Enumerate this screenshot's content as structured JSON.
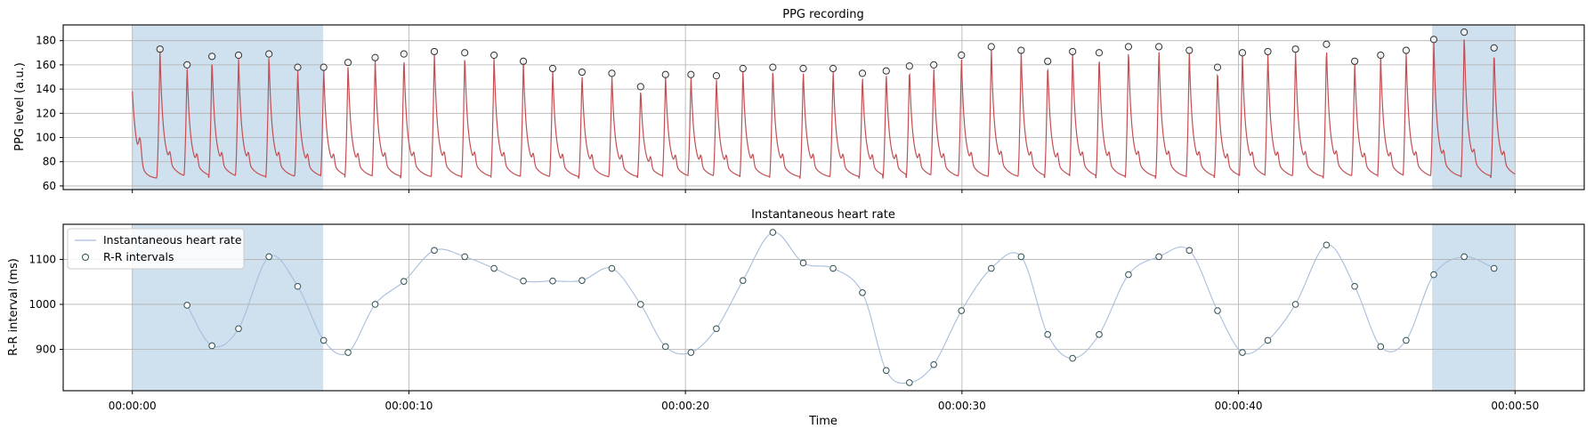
{
  "chart_data": [
    {
      "type": "line",
      "title": "PPG recording",
      "ylabel": "PPG level (a.u.)",
      "xlabel": "",
      "x_unit": "seconds",
      "xlim": [
        -2.5,
        52.5
      ],
      "ylim": [
        57,
        193
      ],
      "yticks": [
        60,
        80,
        100,
        120,
        140,
        160,
        180
      ],
      "grid": true,
      "series_color": "#c44e52",
      "shaded_regions": [
        [
          0,
          6.9
        ],
        [
          47,
          50
        ]
      ],
      "shade_color": "#cfe0ee",
      "series": [
        {
          "name": "PPG signal",
          "trough": 66,
          "peaks": [
            [
              1.0,
              173
            ],
            [
              1.98,
              160
            ],
            [
              2.88,
              167
            ],
            [
              3.84,
              168
            ],
            [
              4.94,
              169
            ],
            [
              5.98,
              158
            ],
            [
              6.92,
              158
            ],
            [
              7.8,
              162
            ],
            [
              8.78,
              166
            ],
            [
              9.82,
              169
            ],
            [
              10.92,
              171
            ],
            [
              12.02,
              170
            ],
            [
              13.08,
              168
            ],
            [
              14.14,
              163
            ],
            [
              15.2,
              157
            ],
            [
              16.26,
              154
            ],
            [
              17.34,
              153
            ],
            [
              18.38,
              142
            ],
            [
              19.28,
              152
            ],
            [
              20.2,
              152
            ],
            [
              21.12,
              151
            ],
            [
              22.08,
              157
            ],
            [
              23.16,
              158
            ],
            [
              24.26,
              157
            ],
            [
              25.34,
              157
            ],
            [
              26.4,
              153
            ],
            [
              27.26,
              155
            ],
            [
              28.1,
              159
            ],
            [
              28.98,
              160
            ],
            [
              29.98,
              168
            ],
            [
              31.06,
              175
            ],
            [
              32.14,
              172
            ],
            [
              33.1,
              163
            ],
            [
              34.0,
              171
            ],
            [
              34.96,
              170
            ],
            [
              36.02,
              175
            ],
            [
              37.12,
              175
            ],
            [
              38.22,
              172
            ],
            [
              39.24,
              158
            ],
            [
              40.14,
              170
            ],
            [
              41.06,
              171
            ],
            [
              42.06,
              173
            ],
            [
              43.18,
              177
            ],
            [
              44.2,
              163
            ],
            [
              45.14,
              168
            ],
            [
              46.06,
              172
            ],
            [
              47.06,
              181
            ],
            [
              48.16,
              187
            ],
            [
              49.24,
              174
            ]
          ]
        }
      ]
    },
    {
      "type": "line",
      "title": "Instantaneous heart rate",
      "ylabel": "R-R interval (ms)",
      "xlabel": "Time",
      "x_unit": "seconds",
      "xlim": [
        -2.5,
        52.5
      ],
      "ylim": [
        808,
        1178
      ],
      "yticks": [
        900,
        1000,
        1100
      ],
      "xticks": [
        0,
        10,
        20,
        30,
        40,
        50
      ],
      "xtick_labels": [
        "00:00:00",
        "00:00:10",
        "00:00:20",
        "00:00:30",
        "00:00:40",
        "00:00:50"
      ],
      "grid": true,
      "legend_position": "upper-left",
      "line_color": "#a8bedc",
      "marker_color": "#2f4f4f",
      "shaded_regions": [
        [
          0,
          6.9
        ],
        [
          47,
          50
        ]
      ],
      "shade_color": "#cfe0ee",
      "series": [
        {
          "name": "Instantaneous heart rate",
          "style": "line"
        },
        {
          "name": "R-R intervals",
          "style": "markers",
          "points": [
            [
              1.98,
              998
            ],
            [
              2.88,
              908
            ],
            [
              3.84,
              946
            ],
            [
              4.94,
              1106
            ],
            [
              5.98,
              1040
            ],
            [
              6.92,
              920
            ],
            [
              7.8,
              893
            ],
            [
              8.78,
              1000
            ],
            [
              9.82,
              1051
            ],
            [
              10.92,
              1120
            ],
            [
              12.02,
              1106
            ],
            [
              13.08,
              1080
            ],
            [
              14.14,
              1052
            ],
            [
              15.2,
              1052
            ],
            [
              16.26,
              1053
            ],
            [
              17.34,
              1080
            ],
            [
              18.38,
              1000
            ],
            [
              19.28,
              906
            ],
            [
              20.2,
              893
            ],
            [
              21.12,
              946
            ],
            [
              22.08,
              1053
            ],
            [
              23.16,
              1160
            ],
            [
              24.26,
              1092
            ],
            [
              25.34,
              1080
            ],
            [
              26.4,
              1026
            ],
            [
              27.26,
              853
            ],
            [
              28.1,
              826
            ],
            [
              28.98,
              866
            ],
            [
              29.98,
              986
            ],
            [
              31.06,
              1080
            ],
            [
              32.14,
              1106
            ],
            [
              33.1,
              933
            ],
            [
              34.0,
              880
            ],
            [
              34.96,
              933
            ],
            [
              36.02,
              1066
            ],
            [
              37.12,
              1106
            ],
            [
              38.22,
              1120
            ],
            [
              39.24,
              986
            ],
            [
              40.14,
              893
            ],
            [
              41.06,
              920
            ],
            [
              42.06,
              1000
            ],
            [
              43.18,
              1132
            ],
            [
              44.2,
              1040
            ],
            [
              45.14,
              906
            ],
            [
              46.06,
              920
            ],
            [
              47.06,
              1066
            ],
            [
              48.16,
              1106
            ],
            [
              49.24,
              1080
            ]
          ]
        }
      ]
    }
  ]
}
